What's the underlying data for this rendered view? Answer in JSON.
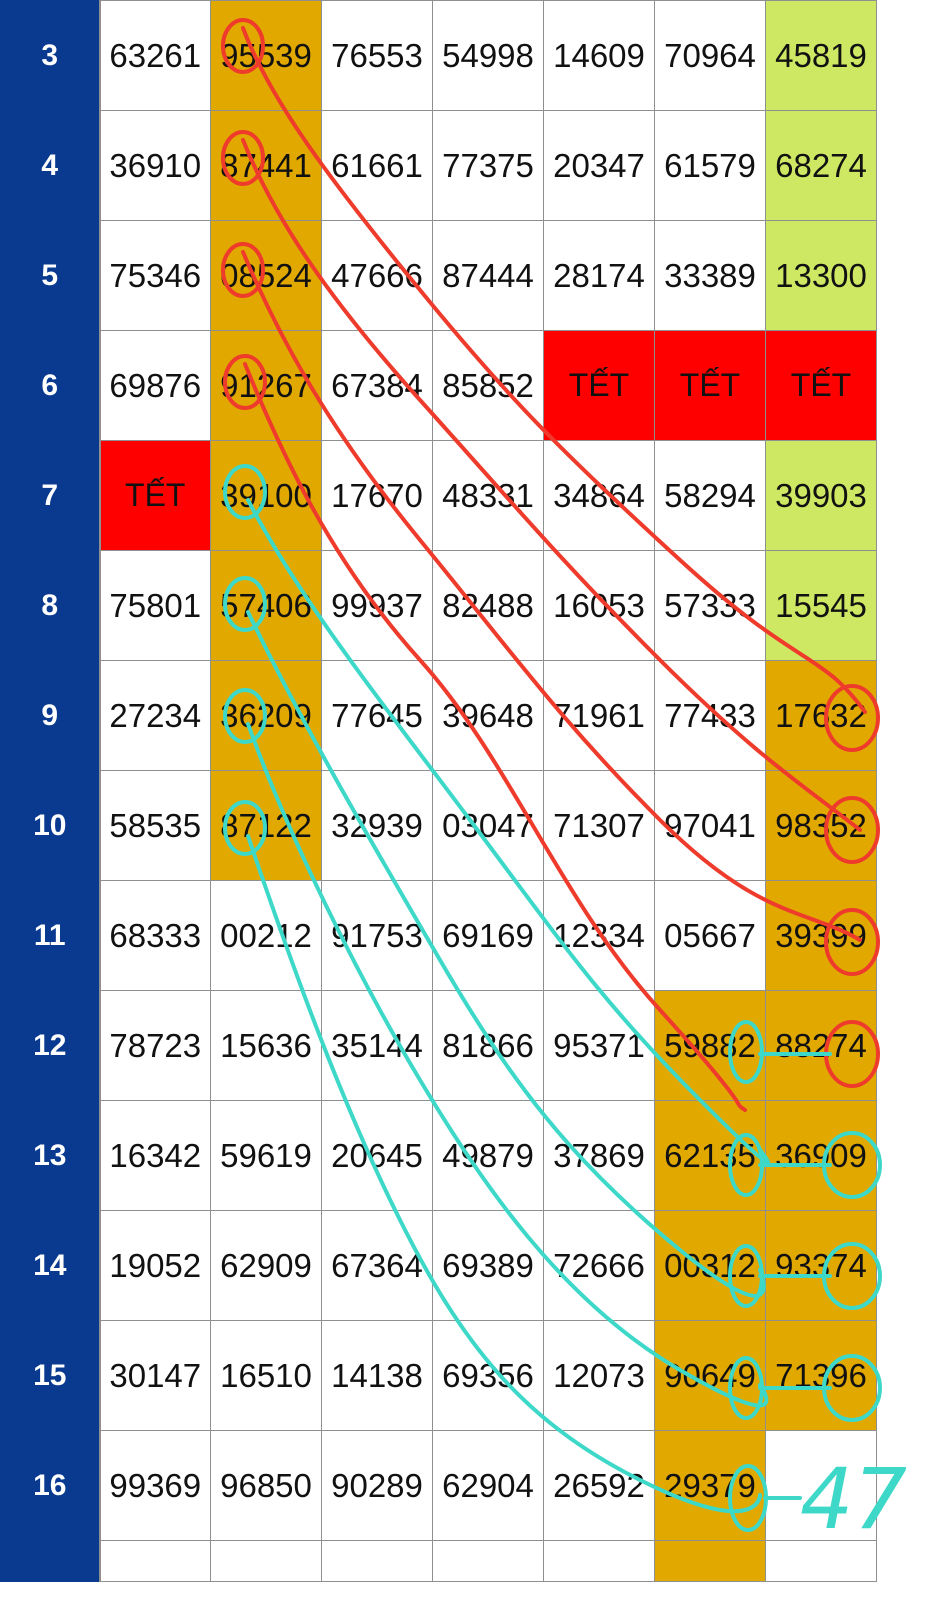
{
  "colors": {
    "row_header_bg": "#0a3a8f",
    "row_header_text": "#ffffff",
    "cell_default": "#ffffff",
    "highlight_gold": "#e1a800",
    "highlight_lime": "#cfe863",
    "tet_red": "#ff0000",
    "annotation_red": "#ee3b2b",
    "annotation_teal": "#3ed8c8"
  },
  "rows": [
    {
      "label": "3",
      "cells": [
        {
          "v": "63261",
          "c": "cell_default"
        },
        {
          "v": "95539",
          "c": "highlight_gold"
        },
        {
          "v": "76553",
          "c": "cell_default"
        },
        {
          "v": "54998",
          "c": "cell_default"
        },
        {
          "v": "14609",
          "c": "cell_default"
        },
        {
          "v": "70964",
          "c": "cell_default"
        },
        {
          "v": "45819",
          "c": "highlight_lime"
        }
      ]
    },
    {
      "label": "4",
      "cells": [
        {
          "v": "36910",
          "c": "cell_default"
        },
        {
          "v": "87441",
          "c": "highlight_gold"
        },
        {
          "v": "61661",
          "c": "cell_default"
        },
        {
          "v": "77375",
          "c": "cell_default"
        },
        {
          "v": "20347",
          "c": "cell_default"
        },
        {
          "v": "61579",
          "c": "cell_default"
        },
        {
          "v": "68274",
          "c": "highlight_lime"
        }
      ]
    },
    {
      "label": "5",
      "cells": [
        {
          "v": "75346",
          "c": "cell_default"
        },
        {
          "v": "08524",
          "c": "highlight_gold"
        },
        {
          "v": "47666",
          "c": "cell_default"
        },
        {
          "v": "87444",
          "c": "cell_default"
        },
        {
          "v": "28174",
          "c": "cell_default"
        },
        {
          "v": "33389",
          "c": "cell_default"
        },
        {
          "v": "13300",
          "c": "highlight_lime"
        }
      ]
    },
    {
      "label": "6",
      "cells": [
        {
          "v": "69876",
          "c": "cell_default"
        },
        {
          "v": "91267",
          "c": "highlight_gold"
        },
        {
          "v": "67384",
          "c": "cell_default"
        },
        {
          "v": "85852",
          "c": "cell_default"
        },
        {
          "v": "TẾT",
          "c": "tet_red"
        },
        {
          "v": "TẾT",
          "c": "tet_red"
        },
        {
          "v": "TẾT",
          "c": "tet_red"
        }
      ]
    },
    {
      "label": "7",
      "cells": [
        {
          "v": "TẾT",
          "c": "tet_red"
        },
        {
          "v": "39100",
          "c": "highlight_gold"
        },
        {
          "v": "17670",
          "c": "cell_default"
        },
        {
          "v": "48331",
          "c": "cell_default"
        },
        {
          "v": "34864",
          "c": "cell_default"
        },
        {
          "v": "58294",
          "c": "cell_default"
        },
        {
          "v": "39903",
          "c": "highlight_lime"
        }
      ]
    },
    {
      "label": "8",
      "cells": [
        {
          "v": "75801",
          "c": "cell_default"
        },
        {
          "v": "57406",
          "c": "highlight_gold"
        },
        {
          "v": "99937",
          "c": "cell_default"
        },
        {
          "v": "82488",
          "c": "cell_default"
        },
        {
          "v": "16053",
          "c": "cell_default"
        },
        {
          "v": "57333",
          "c": "cell_default"
        },
        {
          "v": "15545",
          "c": "highlight_lime"
        }
      ]
    },
    {
      "label": "9",
      "cells": [
        {
          "v": "27234",
          "c": "cell_default"
        },
        {
          "v": "36209",
          "c": "highlight_gold"
        },
        {
          "v": "77645",
          "c": "cell_default"
        },
        {
          "v": "39648",
          "c": "cell_default"
        },
        {
          "v": "71961",
          "c": "cell_default"
        },
        {
          "v": "77433",
          "c": "cell_default"
        },
        {
          "v": "17632",
          "c": "highlight_gold"
        }
      ]
    },
    {
      "label": "10",
      "cells": [
        {
          "v": "58535",
          "c": "cell_default"
        },
        {
          "v": "87122",
          "c": "highlight_gold"
        },
        {
          "v": "32939",
          "c": "cell_default"
        },
        {
          "v": "03047",
          "c": "cell_default"
        },
        {
          "v": "71307",
          "c": "cell_default"
        },
        {
          "v": "97041",
          "c": "cell_default"
        },
        {
          "v": "98352",
          "c": "highlight_gold"
        }
      ]
    },
    {
      "label": "11",
      "cells": [
        {
          "v": "68333",
          "c": "cell_default"
        },
        {
          "v": "00212",
          "c": "cell_default"
        },
        {
          "v": "91753",
          "c": "cell_default"
        },
        {
          "v": "69169",
          "c": "cell_default"
        },
        {
          "v": "12334",
          "c": "cell_default"
        },
        {
          "v": "05667",
          "c": "cell_default"
        },
        {
          "v": "39399",
          "c": "highlight_gold"
        }
      ]
    },
    {
      "label": "12",
      "cells": [
        {
          "v": "78723",
          "c": "cell_default"
        },
        {
          "v": "15636",
          "c": "cell_default"
        },
        {
          "v": "35144",
          "c": "cell_default"
        },
        {
          "v": "81866",
          "c": "cell_default"
        },
        {
          "v": "95371",
          "c": "cell_default"
        },
        {
          "v": "59882",
          "c": "highlight_gold"
        },
        {
          "v": "88274",
          "c": "highlight_gold"
        }
      ]
    },
    {
      "label": "13",
      "cells": [
        {
          "v": "16342",
          "c": "cell_default"
        },
        {
          "v": "59619",
          "c": "cell_default"
        },
        {
          "v": "20645",
          "c": "cell_default"
        },
        {
          "v": "49879",
          "c": "cell_default"
        },
        {
          "v": "37869",
          "c": "cell_default"
        },
        {
          "v": "62135",
          "c": "highlight_gold"
        },
        {
          "v": "36909",
          "c": "highlight_gold"
        }
      ]
    },
    {
      "label": "14",
      "cells": [
        {
          "v": "19052",
          "c": "cell_default"
        },
        {
          "v": "62909",
          "c": "cell_default"
        },
        {
          "v": "67364",
          "c": "cell_default"
        },
        {
          "v": "69389",
          "c": "cell_default"
        },
        {
          "v": "72666",
          "c": "cell_default"
        },
        {
          "v": "00312",
          "c": "highlight_gold"
        },
        {
          "v": "93374",
          "c": "highlight_gold"
        }
      ]
    },
    {
      "label": "15",
      "cells": [
        {
          "v": "30147",
          "c": "cell_default"
        },
        {
          "v": "16510",
          "c": "cell_default"
        },
        {
          "v": "14138",
          "c": "cell_default"
        },
        {
          "v": "69356",
          "c": "cell_default"
        },
        {
          "v": "12073",
          "c": "cell_default"
        },
        {
          "v": "90649",
          "c": "highlight_gold"
        },
        {
          "v": "71396",
          "c": "highlight_gold"
        }
      ]
    },
    {
      "label": "16",
      "cells": [
        {
          "v": "99369",
          "c": "cell_default"
        },
        {
          "v": "96850",
          "c": "cell_default"
        },
        {
          "v": "90289",
          "c": "cell_default"
        },
        {
          "v": "62904",
          "c": "cell_default"
        },
        {
          "v": "26592",
          "c": "cell_default"
        },
        {
          "v": "29379",
          "c": "highlight_gold"
        },
        {
          "v": "",
          "c": "cell_default"
        }
      ]
    }
  ],
  "annotations": {
    "handwritten_note": "47"
  }
}
